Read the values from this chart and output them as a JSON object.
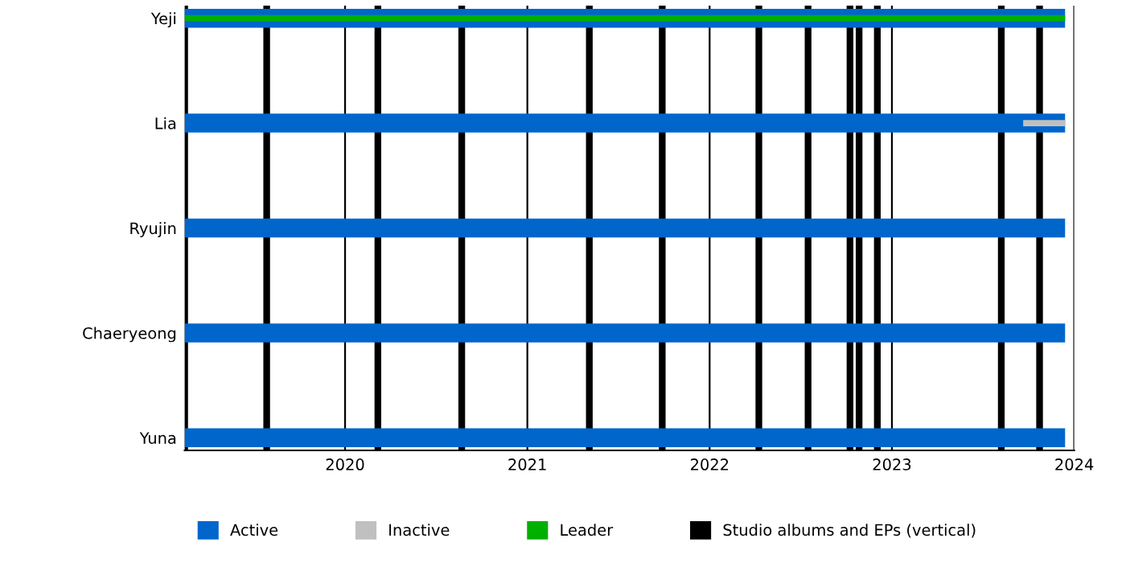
{
  "chart_data": {
    "type": "bar",
    "orientation": "horizontal",
    "categories": [
      "Yeji",
      "Lia",
      "Ryujin",
      "Chaeryeong",
      "Yuna"
    ],
    "series": [
      {
        "name": "Active",
        "color": "#0066cc",
        "base": [
          2019.12,
          2019.12,
          2019.12,
          2019.12,
          2019.12
        ],
        "values": [
          4.83,
          4.83,
          4.83,
          4.83,
          4.83
        ]
      },
      {
        "name": "Inactive",
        "color": "#c0c0c0",
        "base": [
          null,
          2023.72,
          null,
          null,
          null
        ],
        "values": [
          null,
          0.23,
          null,
          null,
          null
        ]
      },
      {
        "name": "Leader",
        "color": "#00b000",
        "base": [
          2019.12,
          null,
          null,
          null,
          null
        ],
        "values": [
          4.83,
          null,
          null,
          null,
          null
        ]
      }
    ],
    "xlim": [
      2019.12,
      2024.0
    ],
    "xticks": [
      2020,
      2021,
      2022,
      2023,
      2024
    ],
    "grid": "x",
    "legend": "bottom",
    "ref_lines": [
      {
        "axis": "x",
        "value": 2019.12,
        "color": "#000000",
        "label": "Studio albums and EPs (vertical)"
      },
      {
        "axis": "x",
        "value": 2019.57,
        "color": "#000000"
      },
      {
        "axis": "x",
        "value": 2020.18,
        "color": "#000000"
      },
      {
        "axis": "x",
        "value": 2020.64,
        "color": "#000000"
      },
      {
        "axis": "x",
        "value": 2021.34,
        "color": "#000000"
      },
      {
        "axis": "x",
        "value": 2021.74,
        "color": "#000000"
      },
      {
        "axis": "x",
        "value": 2022.27,
        "color": "#000000"
      },
      {
        "axis": "x",
        "value": 2022.54,
        "color": "#000000"
      },
      {
        "axis": "x",
        "value": 2022.77,
        "color": "#000000"
      },
      {
        "axis": "x",
        "value": 2022.82,
        "color": "#000000"
      },
      {
        "axis": "x",
        "value": 2022.92,
        "color": "#000000"
      },
      {
        "axis": "x",
        "value": 2023.6,
        "color": "#000000"
      },
      {
        "axis": "x",
        "value": 2023.81,
        "color": "#000000"
      }
    ]
  }
}
